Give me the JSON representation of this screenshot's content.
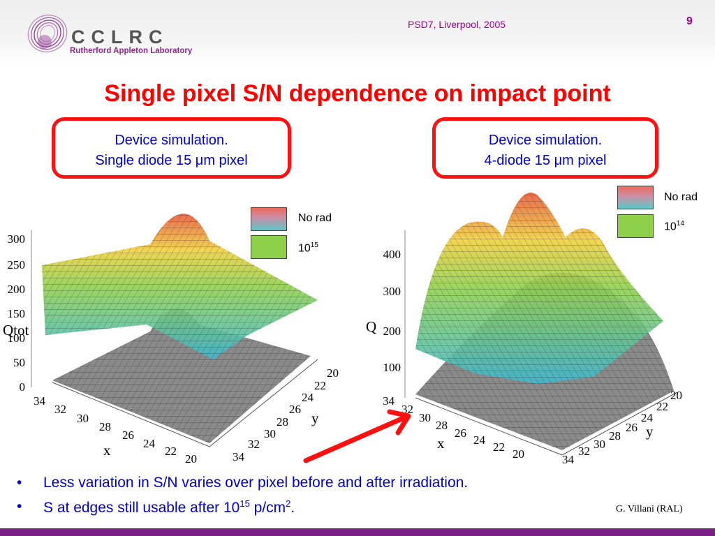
{
  "header": {
    "logo_text": "CCLRC",
    "logo_subtitle": "Rutherford Appleton Laboratory",
    "conference": "PSD7, Liverpool, 2005",
    "page_number": "9"
  },
  "title": "Single pixel S/N dependence on impact point",
  "boxes": [
    {
      "line1": "Device simulation.",
      "line2_pre": "Single diode 15 ",
      "mu": "μ",
      "line2_post": "m pixel"
    },
    {
      "line1": "Device simulation.",
      "line2_pre": "4-diode 15 ",
      "mu": "μ",
      "line2_post": "m pixel"
    }
  ],
  "legend_left": {
    "norad": "No rad",
    "irr_base": "10",
    "irr_exp": "15"
  },
  "legend_right": {
    "norad": "No rad",
    "irr_base": "10",
    "irr_exp": "14"
  },
  "plot_left": {
    "zlabel": "Qtot",
    "zticks": [
      "300",
      "250",
      "200",
      "150",
      "100",
      "50",
      "0"
    ],
    "xlabel": "x",
    "xticks": [
      "34",
      "32",
      "30",
      "28",
      "26",
      "24",
      "22",
      "20"
    ],
    "ylabel": "y",
    "yticks": [
      "20",
      "22",
      "24",
      "26",
      "28",
      "30",
      "32",
      "34"
    ]
  },
  "plot_right": {
    "zlabel": "Q",
    "zticks": [
      "400",
      "300",
      "200",
      "100"
    ],
    "xlabel": "x",
    "xticks": [
      "34",
      "32",
      "30",
      "28",
      "26",
      "24",
      "22",
      "20"
    ],
    "ylabel": "y",
    "yticks": [
      "20",
      "22",
      "24",
      "26",
      "28",
      "30",
      "32",
      "34"
    ]
  },
  "colors": {
    "title": "#ff0000",
    "box_border": "#ff1010",
    "text": "#0000cc",
    "accent": "#a0008c",
    "footer": "#7a1f86"
  },
  "bullets": [
    {
      "pre": "Less variation in S/N varies over pixel before and after irradiation.",
      "sup1": "",
      "mid": "",
      "sup2": "",
      "post": ""
    },
    {
      "pre": "S at edges still usable after 10",
      "sup1": "15",
      "mid": " p/cm",
      "sup2": "2",
      "post": "."
    }
  ],
  "author": "G. Villani (RAL)"
}
